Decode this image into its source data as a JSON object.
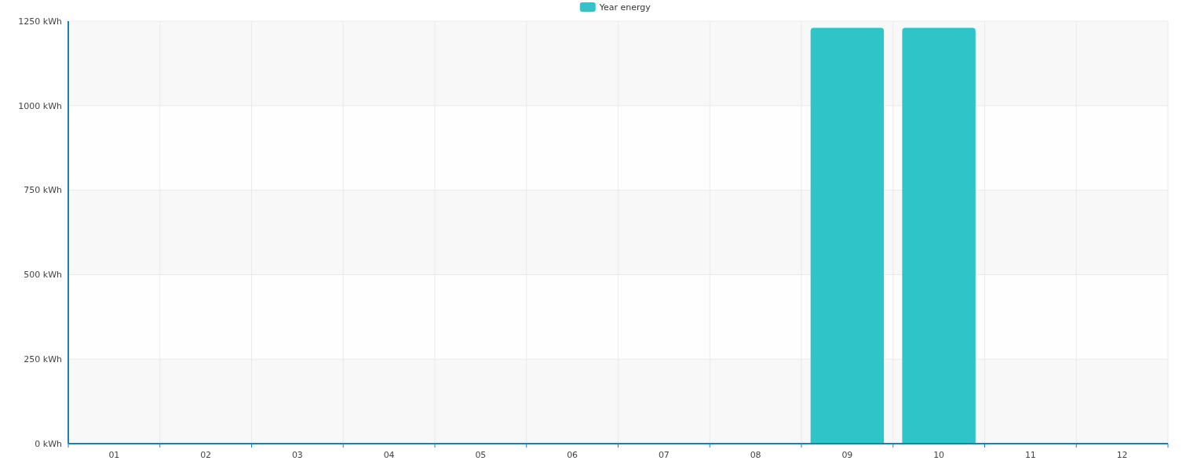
{
  "chart_data": {
    "type": "bar",
    "categories": [
      "01",
      "02",
      "03",
      "04",
      "05",
      "06",
      "07",
      "08",
      "09",
      "10",
      "11",
      "12"
    ],
    "series": [
      {
        "name": "Year energy",
        "color": "#2ec4c8",
        "values": [
          0,
          0,
          0,
          0,
          0,
          0,
          0,
          0,
          1230,
          1230,
          0,
          0
        ]
      }
    ],
    "ylim": [
      0,
      1250
    ],
    "yticks": [
      {
        "value": 0,
        "label": "0 kWh"
      },
      {
        "value": 250,
        "label": "250 kWh"
      },
      {
        "value": 500,
        "label": "500 kWh"
      },
      {
        "value": 750,
        "label": "750 kWh"
      },
      {
        "value": 1000,
        "label": "1000 kWh"
      },
      {
        "value": 1250,
        "label": "1250 kWh"
      }
    ],
    "grid": true,
    "legend": "top"
  }
}
